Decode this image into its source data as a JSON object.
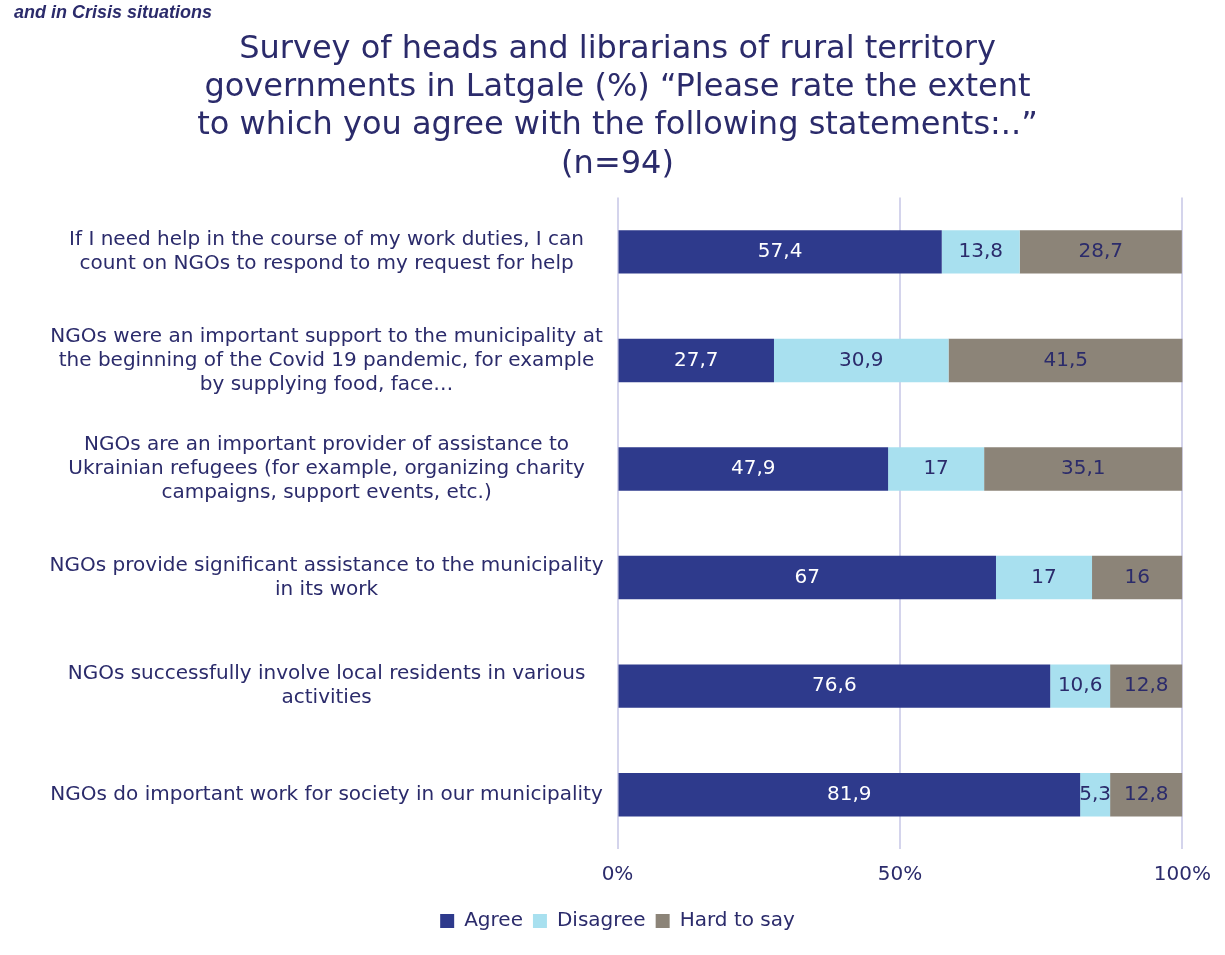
{
  "chart_data": {
    "type": "bar",
    "orientation": "horizontal",
    "stacked": true,
    "title": "Survey of heads and librarians of rural territory governments in Latgale (%) “Please rate the extent to which you agree with the following statements:..” (n=94)",
    "annotations": [
      "and in Crisis situations"
    ],
    "categories": [
      "If I need help in the course of my work duties, I can count on NGOs to respond to my request for help",
      "NGOs were an important support to the municipality at the beginning of the Covid 19 pandemic, for example by supplying food, face…",
      "NGOs are an important provider of assistance to Ukrainian refugees (for example, organizing charity campaigns, support events, etc.)",
      "NGOs provide significant assistance to the municipality in its work",
      "NGOs successfully involve local residents in various activities",
      "NGOs do important work for society in our municipality"
    ],
    "series": [
      {
        "name": "Agree",
        "color": "#2e3a8c",
        "values": [
          57.4,
          27.7,
          47.9,
          67,
          76.6,
          81.9
        ],
        "value_labels": [
          "57,4",
          "27,7",
          "47,9",
          "67",
          "76,6",
          "81,9"
        ]
      },
      {
        "name": "Disagree",
        "color": "#a8e0ef",
        "values": [
          13.8,
          30.9,
          17,
          17,
          10.6,
          5.3
        ],
        "value_labels": [
          "13,8",
          "30,9",
          "17",
          "17",
          "10,6",
          "5,3"
        ]
      },
      {
        "name": "Hard to say",
        "color": "#8c8478",
        "values": [
          28.7,
          41.5,
          35.1,
          16,
          12.8,
          12.8
        ],
        "value_labels": [
          "28,7",
          "41,5",
          "35,1",
          "16",
          "12,8",
          "12,8"
        ]
      }
    ],
    "xlim": [
      0,
      100
    ],
    "xticks": [
      {
        "value": 0,
        "label": "0%"
      },
      {
        "value": 50,
        "label": "50%"
      },
      {
        "value": 100,
        "label": "100%"
      }
    ],
    "grid": "x",
    "legend": "bottom"
  }
}
